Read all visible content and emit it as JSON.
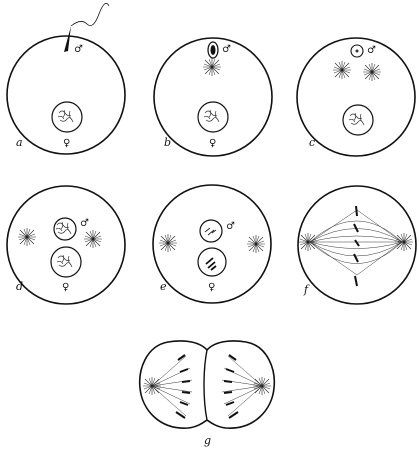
{
  "panels": [
    {
      "letter": "a",
      "labels": [
        "♂",
        "♀"
      ]
    },
    {
      "letter": "b",
      "labels": [
        "♂",
        "♀"
      ]
    },
    {
      "letter": "c",
      "labels": [
        "♂"
      ]
    },
    {
      "letter": "d",
      "labels": [
        "♂",
        "♀"
      ]
    },
    {
      "letter": "e",
      "labels": [
        "♂",
        "♀"
      ]
    },
    {
      "letter": "f",
      "labels": []
    },
    {
      "letter": "g",
      "labels": []
    }
  ]
}
